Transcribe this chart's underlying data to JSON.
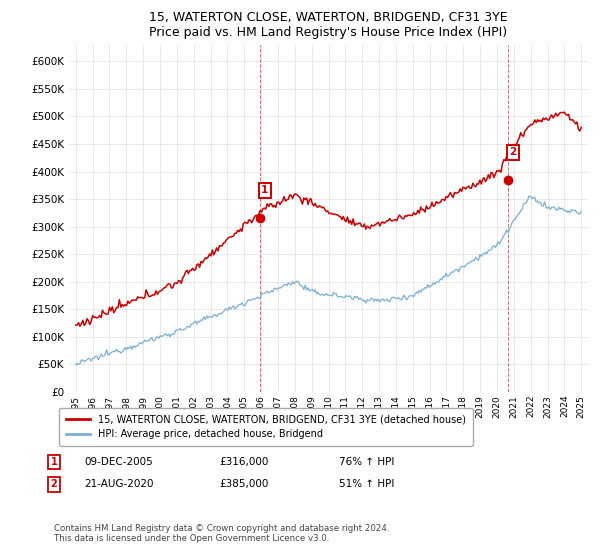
{
  "title": "15, WATERTON CLOSE, WATERTON, BRIDGEND, CF31 3YE",
  "subtitle": "Price paid vs. HM Land Registry's House Price Index (HPI)",
  "yticks": [
    0,
    50000,
    100000,
    150000,
    200000,
    250000,
    300000,
    350000,
    400000,
    450000,
    500000,
    550000,
    600000
  ],
  "xlim_start": 1994.6,
  "xlim_end": 2025.4,
  "ylim": [
    0,
    630000
  ],
  "legend_entry1": "15, WATERTON CLOSE, WATERTON, BRIDGEND, CF31 3YE (detached house)",
  "legend_entry2": "HPI: Average price, detached house, Bridgend",
  "sale1_date": "09-DEC-2005",
  "sale1_price": "£316,000",
  "sale1_hpi": "76% ↑ HPI",
  "sale2_date": "21-AUG-2020",
  "sale2_price": "£385,000",
  "sale2_hpi": "51% ↑ HPI",
  "footer": "Contains HM Land Registry data © Crown copyright and database right 2024.\nThis data is licensed under the Open Government Licence v3.0.",
  "hpi_color": "#7bafd4",
  "price_color": "#cc0000",
  "marker1_x": 2005.92,
  "marker1_y": 316000,
  "marker2_x": 2020.64,
  "marker2_y": 385000,
  "vline1_x": 2005.92,
  "vline2_x": 2020.64,
  "grid_color": "#e0e0e0",
  "title_fontsize": 9,
  "subtitle_fontsize": 8.5
}
